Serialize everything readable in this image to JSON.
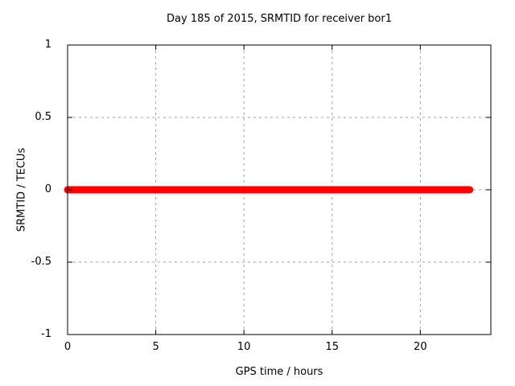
{
  "window": {
    "background": "#ffffff"
  },
  "chart_data": {
    "type": "line",
    "title": "Day 185 of 2015, SRMTID for receiver bor1",
    "xlabel": "GPS time / hours",
    "ylabel": "SRMTID / TECUs",
    "xlim": [
      0,
      24
    ],
    "ylim": [
      -1,
      1
    ],
    "xtick_values": [
      0,
      5,
      10,
      15,
      20
    ],
    "xtick_labels": [
      "0",
      "5",
      "10",
      "15",
      "20"
    ],
    "ytick_values": [
      1,
      0.5,
      0,
      -0.5,
      -1
    ],
    "ytick_labels": [
      "1",
      "0.5",
      "0",
      "-0.5",
      "-1"
    ],
    "grid": "dashed",
    "legend": "none",
    "series": [
      {
        "name": "SRMTID",
        "color": "#ff0000",
        "linewidth": 9,
        "x": [
          0,
          22.8
        ],
        "y": [
          0,
          0
        ]
      }
    ]
  },
  "colors": {
    "line": "#ff0000",
    "grid": "#a0a0a0",
    "axis": "#000000",
    "text": "#000000",
    "background": "#ffffff"
  }
}
